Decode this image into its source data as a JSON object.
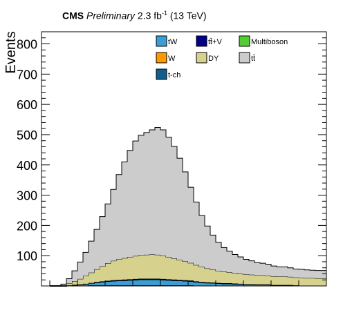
{
  "header": {
    "experiment": "CMS",
    "status": "Preliminary",
    "lumi_value": "2.3 fb",
    "lumi_exp": "-1",
    "energy": "(13 TeV)"
  },
  "chart_data": {
    "type": "area",
    "stacked": true,
    "ylabel": "Events",
    "xlabel": "",
    "ylim": [
      0,
      840
    ],
    "yticks": [
      "100",
      "200",
      "300",
      "400",
      "500",
      "600",
      "700",
      "800"
    ],
    "ytick_values": [
      100,
      200,
      300,
      400,
      500,
      600,
      700,
      800
    ],
    "grid": false,
    "legend_placement": "top-right",
    "bins": 50,
    "series": [
      {
        "name": "t-ch",
        "color": "#0f5f8e",
        "values": [
          0,
          0,
          0,
          1,
          1,
          1,
          1,
          2,
          2,
          2,
          2,
          2,
          2,
          2,
          2,
          2,
          2,
          2,
          2,
          2,
          2,
          2,
          2,
          2,
          2,
          2,
          1,
          1,
          1,
          1,
          1,
          1,
          1,
          1,
          1,
          1,
          1,
          1,
          1,
          1,
          0,
          0,
          0,
          0,
          0,
          0,
          0,
          0,
          0,
          0
        ]
      },
      {
        "name": "tW",
        "color": "#3a9ed4",
        "values": [
          0,
          0,
          0,
          1,
          2,
          3,
          5,
          7,
          9,
          11,
          13,
          14,
          15,
          16,
          17,
          18,
          19,
          19,
          19,
          19,
          18,
          17,
          16,
          15,
          14,
          13,
          12,
          10,
          9,
          8,
          7,
          6,
          6,
          5,
          5,
          4,
          4,
          3,
          3,
          3,
          2,
          2,
          2,
          2,
          1,
          1,
          1,
          1,
          1,
          1
        ]
      },
      {
        "name": "W",
        "color": "#ff9900",
        "values": [
          0,
          0,
          0,
          0,
          0,
          0,
          0,
          0,
          0,
          0,
          0,
          0,
          0,
          0,
          0,
          0,
          0,
          0,
          0,
          0,
          0,
          0,
          0,
          0,
          0,
          0,
          0,
          0,
          0,
          0,
          0,
          0,
          0,
          0,
          0,
          0,
          0,
          0,
          0,
          0,
          0,
          0,
          0,
          0,
          0,
          0,
          0,
          0,
          0,
          0
        ]
      },
      {
        "name": "Multiboson",
        "color": "#55cc33",
        "values": [
          0,
          0,
          0,
          0,
          0,
          0,
          0,
          0,
          0,
          0,
          0,
          0,
          0,
          0,
          0,
          0,
          0,
          0,
          0,
          0,
          0,
          0,
          0,
          0,
          0,
          0,
          0,
          0,
          0,
          0,
          0,
          0,
          0,
          0,
          0,
          0,
          0,
          0,
          0,
          0,
          0,
          0,
          0,
          0,
          0,
          0,
          0,
          0,
          0,
          0
        ]
      },
      {
        "name": "tt̄+V",
        "color": "#00008b",
        "values": [
          0,
          0,
          0,
          0,
          1,
          1,
          1,
          1,
          2,
          2,
          2,
          3,
          3,
          3,
          3,
          3,
          3,
          3,
          3,
          3,
          3,
          3,
          3,
          3,
          3,
          3,
          2,
          2,
          2,
          2,
          2,
          2,
          2,
          2,
          1,
          1,
          1,
          1,
          1,
          1,
          1,
          1,
          1,
          1,
          1,
          0,
          0,
          0,
          0,
          0
        ]
      },
      {
        "name": "DY",
        "color": "#d6d28e",
        "values": [
          0,
          0,
          2,
          6,
          12,
          18,
          26,
          34,
          42,
          50,
          58,
          64,
          68,
          71,
          74,
          76,
          78,
          79,
          80,
          79,
          77,
          74,
          70,
          66,
          62,
          58,
          54,
          50,
          46,
          43,
          40,
          38,
          36,
          34,
          33,
          32,
          31,
          30,
          30,
          29,
          29,
          28,
          28,
          27,
          26,
          26,
          25,
          25,
          24,
          24
        ]
      },
      {
        "name": "tt̄",
        "color": "#cccccc",
        "values": [
          0,
          0,
          4,
          16,
          34,
          56,
          78,
          104,
          132,
          164,
          196,
          236,
          280,
          318,
          352,
          380,
          396,
          404,
          412,
          421,
          416,
          396,
          370,
          336,
          296,
          250,
          208,
          170,
          140,
          114,
          94,
          80,
          70,
          62,
          56,
          50,
          46,
          42,
          40,
          38,
          34,
          32,
          32,
          30,
          28,
          28,
          27,
          26,
          26,
          26
        ]
      }
    ],
    "legend": [
      {
        "name": "tW",
        "color": "#3a9ed4"
      },
      {
        "name": "tt̄+V",
        "color": "#00008b"
      },
      {
        "name": "Multiboson",
        "color": "#55cc33"
      },
      {
        "name": "W",
        "color": "#ff9900"
      },
      {
        "name": "DY",
        "color": "#d6d28e"
      },
      {
        "name": "tt̄",
        "color": "#cccccc"
      },
      {
        "name": "t-ch",
        "color": "#0f5f8e"
      }
    ]
  }
}
